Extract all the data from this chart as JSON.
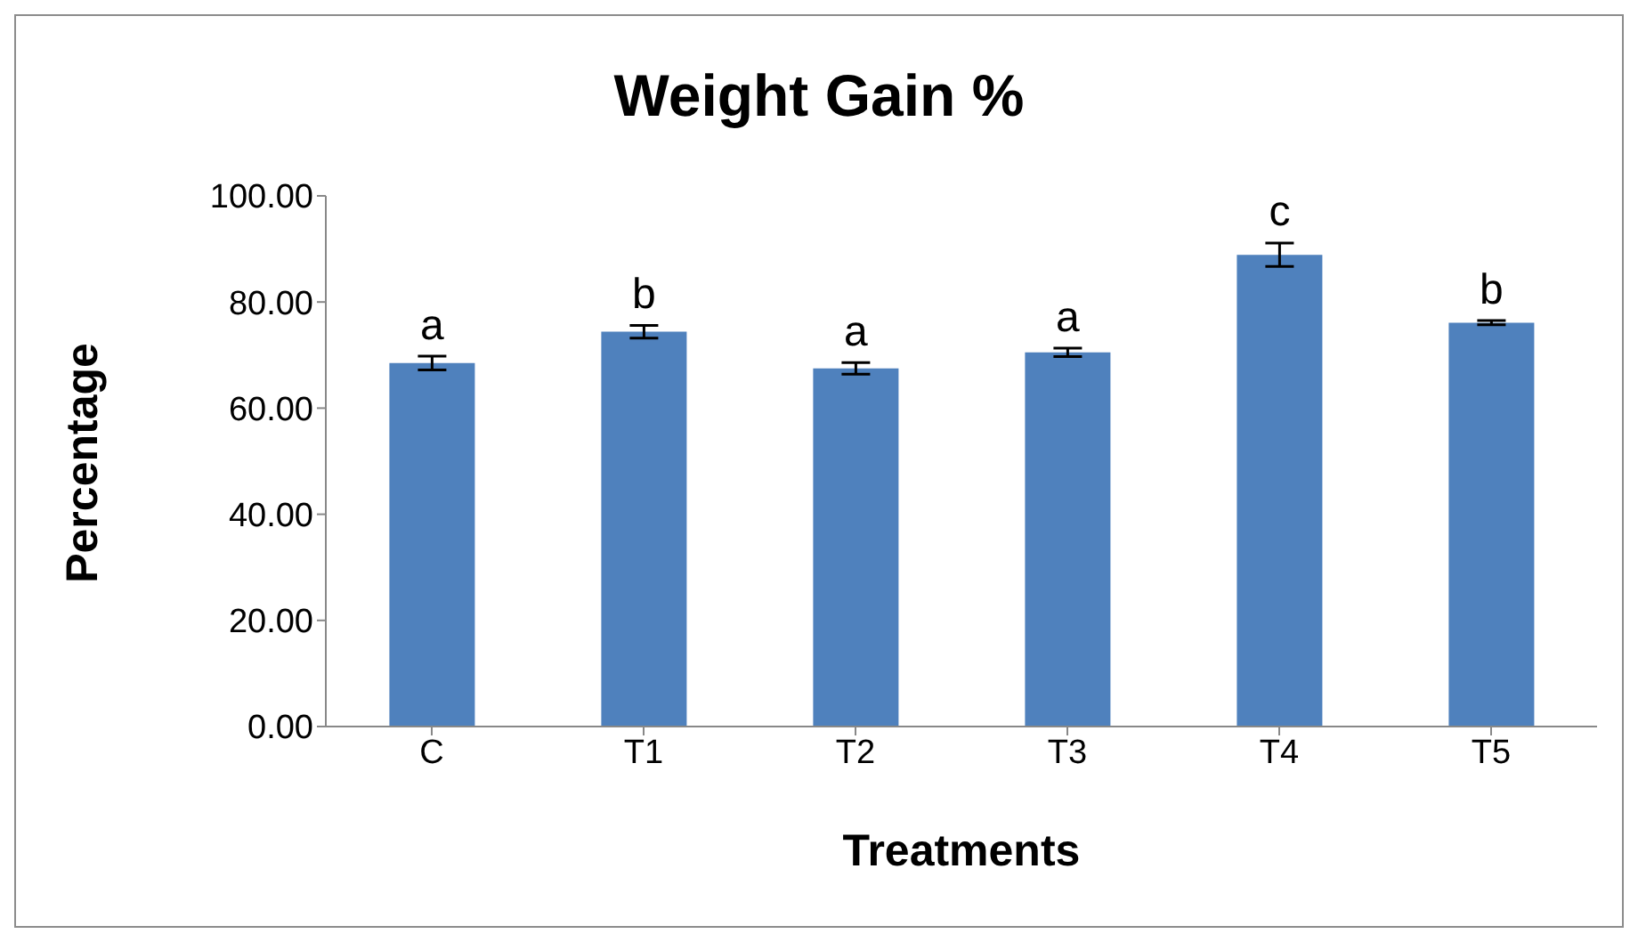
{
  "chart_data": {
    "type": "bar",
    "title": "Weight Gain %",
    "xlabel": "Treatments",
    "ylabel": "Percentage",
    "categories": [
      "C",
      "T1",
      "T2",
      "T3",
      "T4",
      "T5"
    ],
    "values": [
      68.5,
      74.4,
      67.5,
      70.5,
      88.9,
      76.1
    ],
    "errors": [
      1.3,
      1.2,
      1.1,
      0.8,
      2.2,
      0.4
    ],
    "color": "#4f81bd",
    "ylim": [
      0,
      100
    ],
    "yticks": [
      {
        "value": 0,
        "label": "0.00"
      },
      {
        "value": 20,
        "label": "20.00"
      },
      {
        "value": 40,
        "label": "40.00"
      },
      {
        "value": 60,
        "label": "60.00"
      },
      {
        "value": 80,
        "label": "80.00"
      },
      {
        "value": 100,
        "label": "100.00"
      }
    ],
    "annotations": [
      {
        "text": "a",
        "x": "C",
        "y": 68.5
      },
      {
        "text": "b",
        "x": "T1",
        "y": 74.4
      },
      {
        "text": "a",
        "x": "T2",
        "y": 67.5
      },
      {
        "text": "a",
        "x": "T3",
        "y": 70.5
      },
      {
        "text": "c",
        "x": "T4",
        "y": 88.9
      },
      {
        "text": "b",
        "x": "T5",
        "y": 76.1
      }
    ],
    "grid": false,
    "legend": false
  }
}
